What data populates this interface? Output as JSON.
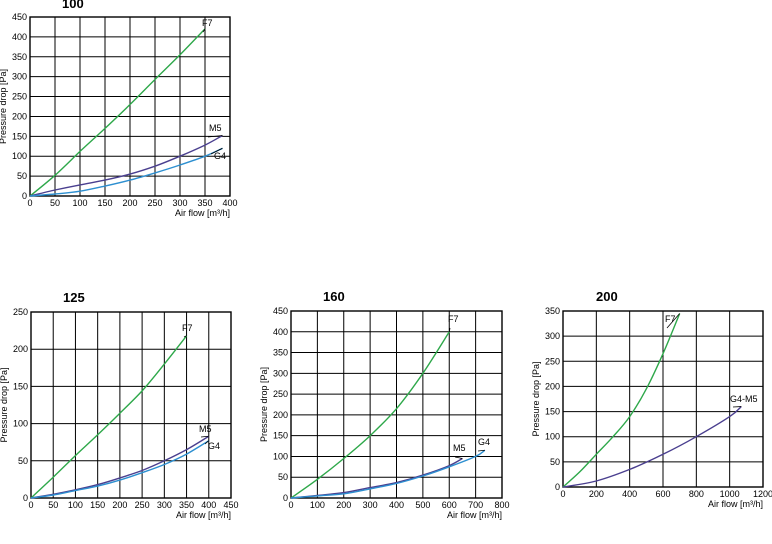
{
  "colors": {
    "F7": "#2ea84a",
    "M5": "#4a3f8f",
    "G4": "#2d8fd0",
    "G4-M5": "#4a3f8f"
  },
  "chart_data": [
    {
      "type": "line",
      "title": "100",
      "xlabel": "Air flow [m³/h]",
      "ylabel": "Pressure drop [Pa]",
      "xlim": [
        0,
        400
      ],
      "ylim": [
        0,
        450
      ],
      "xticks": [
        0,
        50,
        100,
        150,
        200,
        250,
        300,
        350,
        400
      ],
      "yticks": [
        0,
        50,
        100,
        150,
        200,
        250,
        300,
        350,
        400,
        450
      ],
      "series": [
        {
          "name": "F7",
          "x": [
            0,
            50,
            100,
            150,
            200,
            250,
            300,
            350
          ],
          "y": [
            0,
            52,
            112,
            170,
            230,
            293,
            355,
            420
          ]
        },
        {
          "name": "M5",
          "x": [
            0,
            50,
            100,
            150,
            200,
            250,
            300,
            350,
            385
          ],
          "y": [
            0,
            15,
            28,
            40,
            55,
            75,
            100,
            128,
            152
          ]
        },
        {
          "name": "G4",
          "x": [
            0,
            50,
            100,
            150,
            200,
            250,
            300,
            350,
            385
          ],
          "y": [
            0,
            5,
            12,
            25,
            40,
            58,
            78,
            100,
            120
          ]
        }
      ]
    },
    {
      "type": "line",
      "title": "125",
      "xlabel": "Air flow [m³/h]",
      "ylabel": "Pressure drop [Pa]",
      "xlim": [
        0,
        450
      ],
      "ylim": [
        0,
        250
      ],
      "xticks": [
        0,
        50,
        100,
        150,
        200,
        250,
        300,
        350,
        400,
        450
      ],
      "yticks": [
        0,
        50,
        100,
        150,
        200,
        250
      ],
      "series": [
        {
          "name": "F7",
          "x": [
            0,
            50,
            100,
            150,
            200,
            250,
            300,
            350
          ],
          "y": [
            0,
            28,
            57,
            85,
            114,
            144,
            180,
            218
          ]
        },
        {
          "name": "M5",
          "x": [
            0,
            50,
            100,
            150,
            200,
            250,
            300,
            350,
            400
          ],
          "y": [
            0,
            5,
            11,
            18,
            27,
            37,
            50,
            65,
            83
          ]
        },
        {
          "name": "G4",
          "x": [
            0,
            50,
            100,
            150,
            200,
            250,
            300,
            350,
            400
          ],
          "y": [
            0,
            4,
            10,
            16,
            24,
            34,
            45,
            59,
            77
          ]
        }
      ]
    },
    {
      "type": "line",
      "title": "160",
      "xlabel": "Air flow [m³/h]",
      "ylabel": "Pressure drop [Pa]",
      "xlim": [
        0,
        800
      ],
      "ylim": [
        0,
        450
      ],
      "xticks": [
        0,
        100,
        200,
        300,
        400,
        500,
        600,
        700,
        800
      ],
      "yticks": [
        0,
        50,
        100,
        150,
        200,
        250,
        300,
        350,
        400,
        450
      ],
      "series": [
        {
          "name": "F7",
          "x": [
            0,
            100,
            200,
            300,
            400,
            500,
            600
          ],
          "y": [
            0,
            45,
            95,
            150,
            215,
            300,
            400
          ]
        },
        {
          "name": "M5",
          "x": [
            0,
            100,
            200,
            300,
            400,
            500,
            600,
            650
          ],
          "y": [
            0,
            6,
            13,
            25,
            37,
            55,
            78,
            95
          ]
        },
        {
          "name": "G4",
          "x": [
            0,
            100,
            200,
            300,
            400,
            500,
            600,
            700,
            735
          ],
          "y": [
            0,
            5,
            10,
            22,
            35,
            53,
            75,
            100,
            115
          ]
        }
      ]
    },
    {
      "type": "line",
      "title": "200",
      "xlabel": "Air flow [m³/h]",
      "ylabel": "Pressure drop [Pa]",
      "xlim": [
        0,
        1200
      ],
      "ylim": [
        0,
        350
      ],
      "xticks": [
        0,
        200,
        400,
        600,
        800,
        1000,
        1200
      ],
      "yticks": [
        0,
        50,
        100,
        150,
        200,
        250,
        300,
        350
      ],
      "series": [
        {
          "name": "F7",
          "x": [
            0,
            100,
            200,
            300,
            400,
            500,
            600,
            700
          ],
          "y": [
            0,
            30,
            65,
            100,
            140,
            195,
            265,
            345
          ]
        },
        {
          "name": "G4-M5",
          "x": [
            0,
            200,
            400,
            600,
            800,
            1000,
            1070
          ],
          "y": [
            0,
            12,
            35,
            65,
            100,
            140,
            160
          ]
        }
      ]
    }
  ]
}
